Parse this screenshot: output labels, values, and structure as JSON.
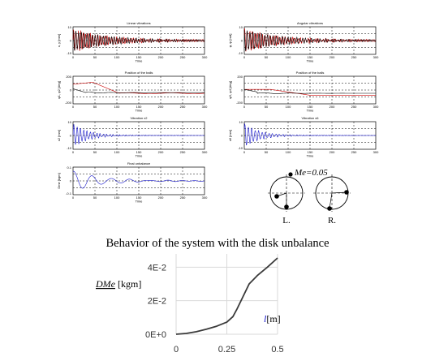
{
  "caption": "Behavior of the system with the disk unbalance",
  "panels": [
    {
      "id": "lin-vib",
      "title": "Linear vibrations",
      "xlabel": "Time",
      "ylabel": "x, y [mm]",
      "yticks": [
        "10",
        "0",
        "-10"
      ],
      "color": "#cc0000"
    },
    {
      "id": "ang-vib",
      "title": "Angular vibrations",
      "xlabel": "Time",
      "ylabel": "φ, ψ [rad]",
      "yticks": [
        "10",
        "0",
        "-10"
      ],
      "color": "#cc0000"
    },
    {
      "id": "pos-balls-l",
      "title": "Position of the balls",
      "xlabel": "Time",
      "ylabel": "φ1, φ2 [deg]",
      "yticks": [
        "200",
        "0",
        "-200"
      ],
      "color": "#cc0000"
    },
    {
      "id": "pos-balls-r",
      "title": "Position of the balls",
      "xlabel": "Time",
      "ylabel": "φ3, φ4 [deg]",
      "yticks": [
        "200",
        "0",
        "-200"
      ],
      "color": "#cc0000"
    },
    {
      "id": "vib-x2",
      "title": "Vibration x2",
      "xlabel": "Time",
      "ylabel": "x2 [mm]",
      "yticks": [
        "10",
        "0",
        "-10"
      ],
      "color": "#1a1acc"
    },
    {
      "id": "vib-x6",
      "title": "Vibration x6",
      "xlabel": "Time",
      "ylabel": "x6 [mm]",
      "yticks": [
        "10",
        "0",
        "-10"
      ],
      "color": "#1a1acc"
    },
    {
      "id": "final-unb",
      "title": "Final unbalance",
      "xlabel": "Time",
      "ylabel": "Dme [kgm]",
      "yticks": [
        "0.1",
        "0",
        "-0.1"
      ],
      "color": "#1a1acc"
    }
  ],
  "xticks": [
    "0",
    "50",
    "100",
    "150",
    "200",
    "250",
    "300"
  ],
  "disks": {
    "label_left": "L.",
    "label_right": "R.",
    "me_label": "Me=0.05"
  },
  "chart_data": {
    "type": "line",
    "title": "",
    "xlabel": "l",
    "xlabel_unit": "[m]",
    "ylabel": "DMe",
    "ylabel_unit": "[kgm]",
    "xlim": [
      0,
      0.5
    ],
    "ylim": [
      0,
      0.045
    ],
    "x_tick_labels": [
      "0",
      "0.25",
      "0.5"
    ],
    "x_ticks": [
      0,
      0.25,
      0.5
    ],
    "y_tick_labels": [
      "0E+0",
      "2E-2",
      "4E-2"
    ],
    "y_ticks": [
      0,
      0.02,
      0.04
    ],
    "grid": true,
    "series": [
      {
        "x": [
          0,
          0.05,
          0.1,
          0.15,
          0.2,
          0.25,
          0.28,
          0.3,
          0.33,
          0.36,
          0.4,
          0.45,
          0.5
        ],
        "y": [
          0,
          0.0005,
          0.0015,
          0.003,
          0.0048,
          0.0072,
          0.0105,
          0.015,
          0.0225,
          0.03,
          0.035,
          0.04,
          0.0455
        ],
        "color": "#3a3a3a"
      }
    ]
  }
}
